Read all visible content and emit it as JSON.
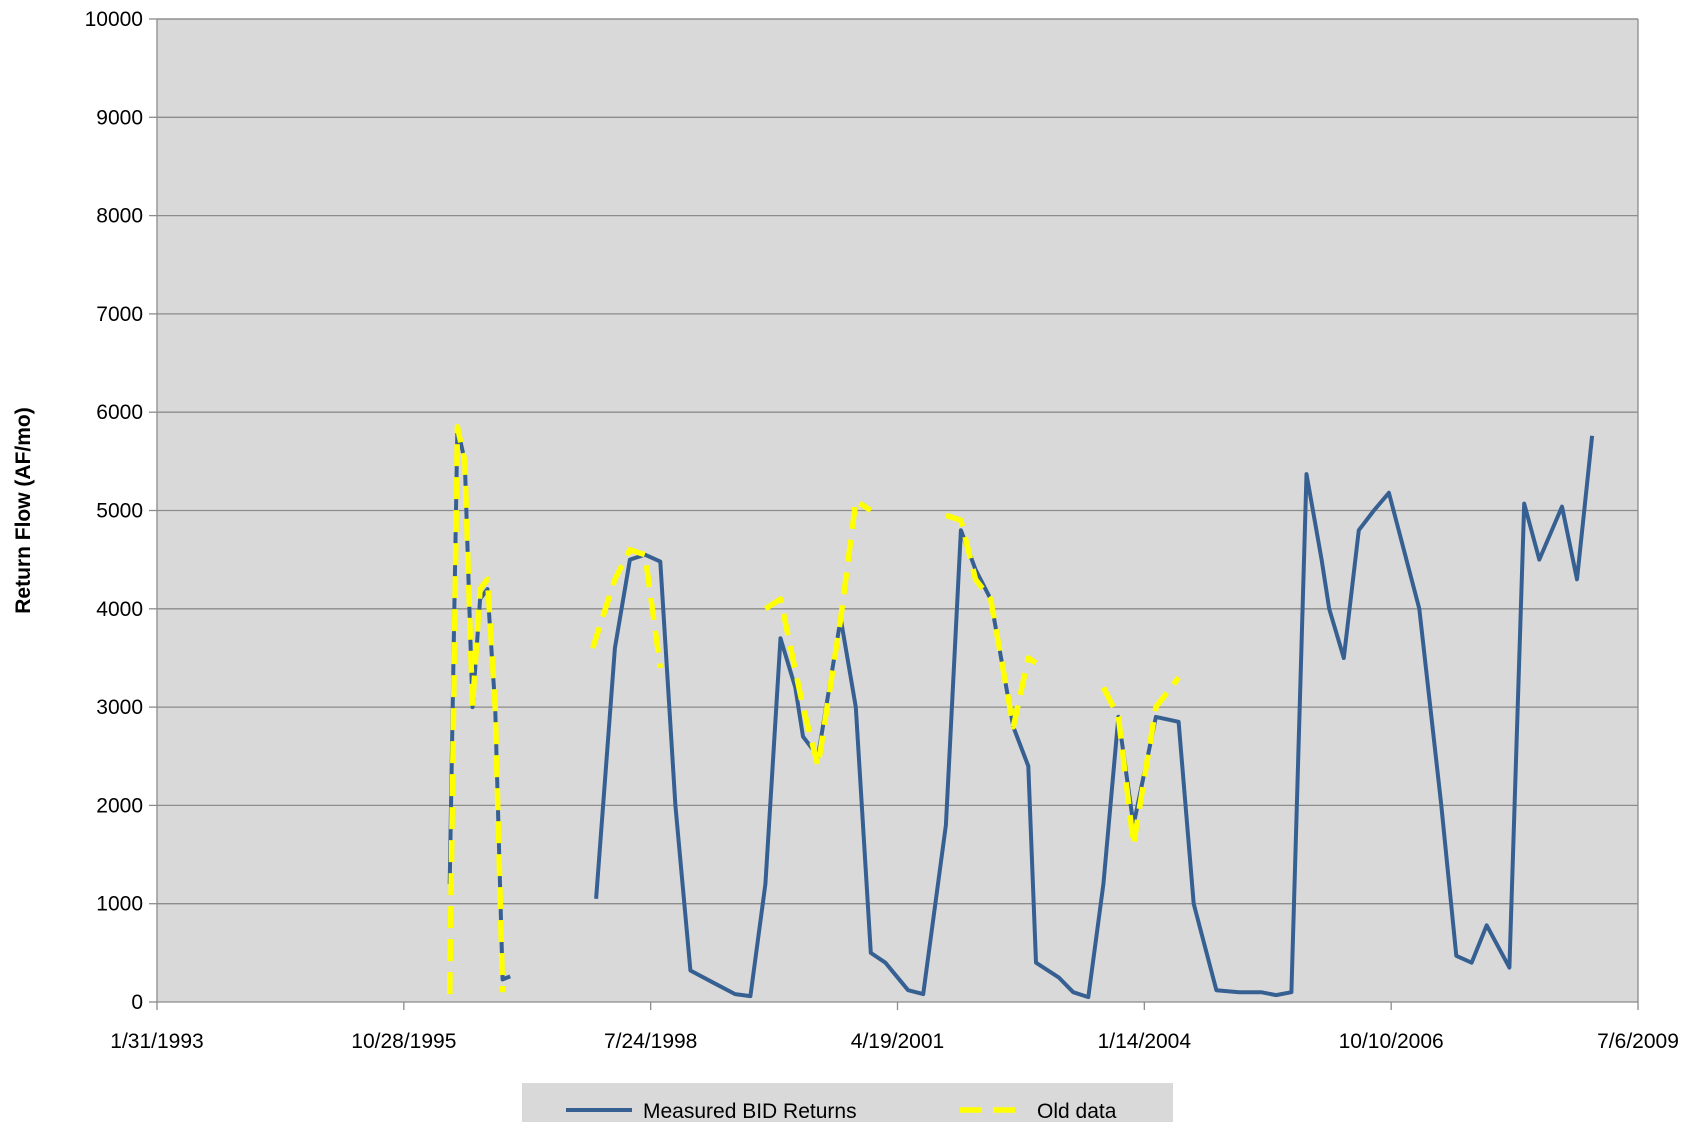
{
  "chart_data": {
    "type": "line",
    "title": "",
    "xlabel": "",
    "ylabel": "Return Flow (AF/mo)",
    "x_axis_type": "date",
    "xlim": [
      "1993-01-31",
      "2009-07-06"
    ],
    "x_ticks": [
      "1/31/1993",
      "10/28/1995",
      "7/24/1998",
      "4/19/2001",
      "1/14/2004",
      "10/10/2006",
      "7/6/2009"
    ],
    "ylim": [
      0,
      10000
    ],
    "y_ticks": [
      0,
      1000,
      2000,
      3000,
      4000,
      5000,
      6000,
      7000,
      8000,
      9000,
      10000
    ],
    "grid": "horizontal",
    "plot_background": "#d9d9d9",
    "legend_position": "bottom",
    "series": [
      {
        "name": "Measured BID Returns",
        "color": "#376092",
        "style": "solid",
        "segments": [
          [
            [
              "1996-05-01",
              1200
            ],
            [
              "1996-06-01",
              5850
            ],
            [
              "1996-07-01",
              5500
            ],
            [
              "1996-08-01",
              3000
            ],
            [
              "1996-09-01",
              4100
            ],
            [
              "1996-10-01",
              4200
            ],
            [
              "1996-11-01",
              3000
            ],
            [
              "1996-12-01",
              230
            ],
            [
              "1997-01-01",
              260
            ]
          ],
          [
            [
              "1997-12-15",
              1050
            ],
            [
              "1998-03-01",
              3600
            ],
            [
              "1998-05-01",
              4500
            ],
            [
              "1998-07-01",
              4550
            ],
            [
              "1998-09-01",
              4480
            ],
            [
              "1998-11-01",
              2000
            ],
            [
              "1999-01-01",
              320
            ],
            [
              "1999-04-01",
              200
            ],
            [
              "1999-07-01",
              80
            ],
            [
              "1999-09-01",
              60
            ],
            [
              "1999-11-01",
              1200
            ],
            [
              "2000-01-01",
              3700
            ],
            [
              "2000-03-01",
              3200
            ],
            [
              "2000-04-01",
              2700
            ],
            [
              "2000-06-01",
              2500
            ],
            [
              "2000-09-01",
              3900
            ],
            [
              "2000-11-01",
              3000
            ],
            [
              "2001-01-01",
              500
            ],
            [
              "2001-03-01",
              400
            ],
            [
              "2001-06-01",
              120
            ],
            [
              "2001-08-01",
              80
            ],
            [
              "2001-11-01",
              1800
            ],
            [
              "2002-01-01",
              4800
            ],
            [
              "2002-03-01",
              4400
            ],
            [
              "2002-05-01",
              4100
            ],
            [
              "2002-08-01",
              2800
            ],
            [
              "2002-10-01",
              2400
            ],
            [
              "2002-11-01",
              400
            ],
            [
              "2003-02-01",
              250
            ],
            [
              "2003-04-01",
              100
            ],
            [
              "2003-06-01",
              50
            ],
            [
              "2003-08-01",
              1200
            ],
            [
              "2003-10-01",
              2900
            ],
            [
              "2003-12-01",
              1800
            ],
            [
              "2004-03-01",
              2900
            ],
            [
              "2004-06-01",
              2850
            ],
            [
              "2004-08-01",
              1000
            ],
            [
              "2004-11-01",
              120
            ],
            [
              "2005-02-01",
              100
            ],
            [
              "2005-05-01",
              100
            ],
            [
              "2005-07-01",
              70
            ],
            [
              "2005-09-01",
              100
            ],
            [
              "2005-11-01",
              5370
            ],
            [
              "2006-01-01",
              4500
            ],
            [
              "2006-02-01",
              4000
            ],
            [
              "2006-04-01",
              3500
            ],
            [
              "2006-06-01",
              4800
            ],
            [
              "2006-08-01",
              5000
            ],
            [
              "2006-10-01",
              5180
            ],
            [
              "2007-02-01",
              4000
            ],
            [
              "2007-05-01",
              2000
            ],
            [
              "2007-07-01",
              470
            ],
            [
              "2007-09-01",
              400
            ],
            [
              "2007-11-01",
              780
            ],
            [
              "2008-02-01",
              350
            ],
            [
              "2008-04-01",
              5070
            ],
            [
              "2008-06-01",
              4500
            ],
            [
              "2008-09-01",
              5040
            ],
            [
              "2008-11-01",
              4300
            ],
            [
              "2009-01-01",
              5760
            ]
          ]
        ]
      },
      {
        "name": "Old data",
        "color": "#ffff00",
        "style": "dashed",
        "segments": [
          [
            [
              "1996-05-01",
              80
            ],
            [
              "1996-06-01",
              5850
            ],
            [
              "1996-07-01",
              5500
            ],
            [
              "1996-08-01",
              3000
            ],
            [
              "1996-09-01",
              4200
            ],
            [
              "1996-10-01",
              4300
            ],
            [
              "1996-11-01",
              3000
            ],
            [
              "1996-12-01",
              100
            ]
          ],
          [
            [
              "1997-12-01",
              3600
            ],
            [
              "1998-03-01",
              4300
            ],
            [
              "1998-05-01",
              4600
            ],
            [
              "1998-07-01",
              4550
            ],
            [
              "1998-09-01",
              3400
            ]
          ],
          [
            [
              "1999-11-01",
              4000
            ],
            [
              "2000-01-01",
              4100
            ],
            [
              "2000-04-01",
              3000
            ],
            [
              "2000-06-01",
              2400
            ],
            [
              "2000-09-01",
              3900
            ],
            [
              "2000-11-01",
              5100
            ],
            [
              "2001-01-01",
              5000
            ]
          ],
          [
            [
              "2001-11-01",
              4950
            ],
            [
              "2002-01-01",
              4900
            ],
            [
              "2002-03-01",
              4300
            ],
            [
              "2002-05-01",
              4100
            ],
            [
              "2002-08-01",
              2800
            ],
            [
              "2002-10-01",
              3500
            ],
            [
              "2002-11-01",
              3450
            ]
          ],
          [
            [
              "2003-08-01",
              3200
            ],
            [
              "2003-10-01",
              2900
            ],
            [
              "2003-12-01",
              1600
            ],
            [
              "2004-03-01",
              3000
            ],
            [
              "2004-06-01",
              3300
            ]
          ]
        ]
      }
    ]
  }
}
